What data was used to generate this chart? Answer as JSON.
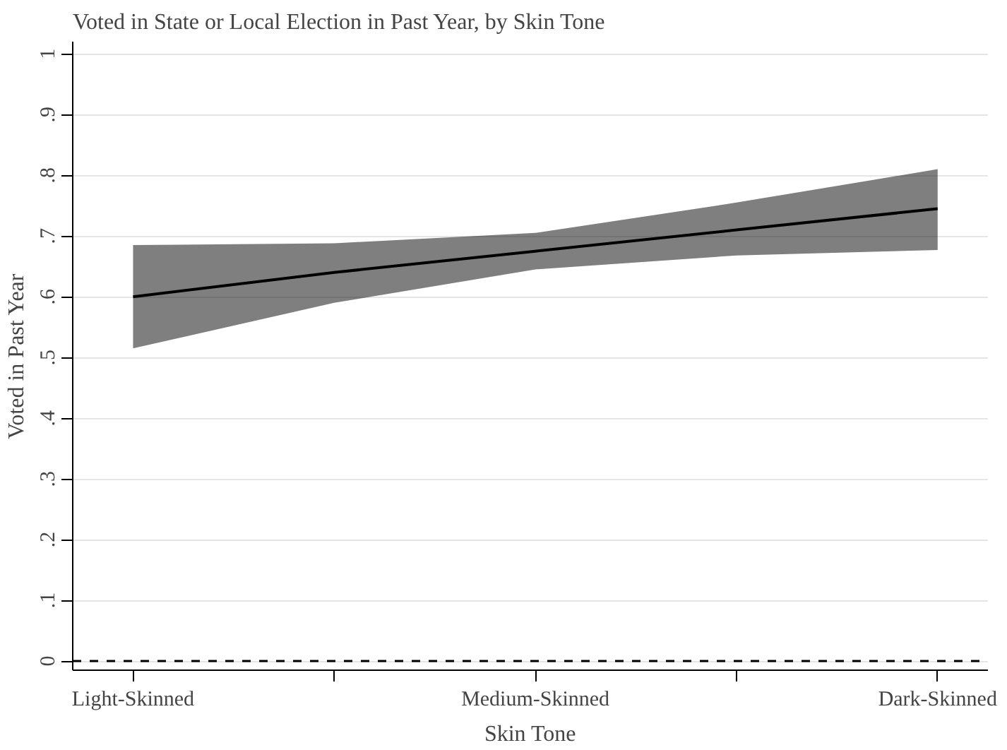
{
  "chart_data": {
    "type": "line",
    "title": "Voted in State or Local Election in Past Year, by Skin Tone",
    "xlabel": "Skin Tone",
    "ylabel": "Voted in Past Year",
    "categories": [
      "Light-Skinned",
      null,
      "Medium-Skinned",
      null,
      "Dark-Skinned"
    ],
    "series": [
      {
        "color": "#000000",
        "values": [
          0.6,
          0.64,
          0.675,
          0.71,
          0.745
        ],
        "lower": [
          0.515,
          0.59,
          0.645,
          0.668,
          0.677
        ],
        "upper": [
          0.685,
          0.688,
          0.705,
          0.755,
          0.81
        ]
      }
    ],
    "ylim": [
      -0.015,
      1.02
    ],
    "yticks": [
      0,
      {
        "value": 0.1,
        "label": ".1"
      },
      {
        "value": 0.2,
        "label": ".2"
      },
      {
        "value": 0.3,
        "label": ".3"
      },
      {
        "value": 0.4,
        "label": ".4"
      },
      {
        "value": 0.5,
        "label": ".5"
      },
      {
        "value": 0.6,
        "label": ".6"
      },
      {
        "value": 0.7,
        "label": ".7"
      },
      {
        "value": 0.8,
        "label": ".8"
      },
      {
        "value": 0.9,
        "label": ".9"
      },
      1
    ],
    "grid": "y",
    "marker": "none",
    "line_style": "solid",
    "ref_lines": [
      {
        "axis": "y",
        "value": 0,
        "label": null,
        "color": "#000000",
        "line_style": "dashed"
      }
    ]
  }
}
